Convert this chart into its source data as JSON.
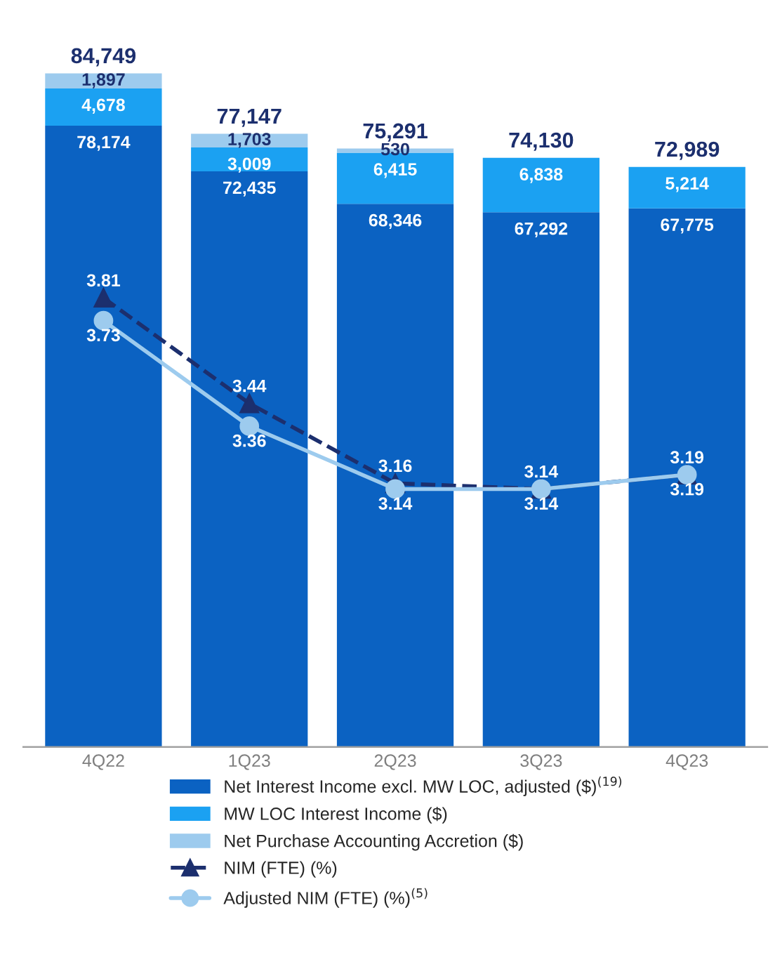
{
  "chart_data": {
    "type": "bar",
    "stacked": true,
    "categories": [
      "4Q22",
      "1Q23",
      "2Q23",
      "3Q23",
      "4Q23"
    ],
    "tick_labels": "x",
    "grid": false,
    "legend": "bottom",
    "series": [
      {
        "name": "Net Interest Income excl. MW LOC, adjusted ($)$^{(19)}$",
        "color": "#0b62c2",
        "values": [
          78174,
          72435,
          68346,
          67292,
          67775
        ],
        "value_labels": [
          "78,174",
          "72,435",
          "68,346",
          "67,292",
          "67,775"
        ]
      },
      {
        "name": "MW LOC Interest Income ($)",
        "color": "#1ba1f2",
        "values": [
          4678,
          3009,
          6415,
          6838,
          5214
        ],
        "value_labels": [
          "4,678",
          "3,009",
          "6,415",
          "6,838",
          "5,214"
        ]
      },
      {
        "name": "Net Purchase Accounting Accretion ($)",
        "color": "#9dcbee",
        "values": [
          1897,
          1703,
          530,
          null,
          null
        ],
        "value_labels": [
          "1,897",
          "1,703",
          "530",
          null,
          null
        ]
      },
      {
        "name": "NIM (FTE) (%)",
        "type": "line",
        "axis": "y2",
        "color": "#1c2f6e",
        "marker": "triangle",
        "line_style": "dashed",
        "values": [
          3.81,
          3.44,
          3.16,
          3.14,
          3.19
        ],
        "value_labels": [
          "3.81",
          "3.44",
          "3.16",
          "3.14",
          "3.19"
        ]
      },
      {
        "name": "Adjusted NIM (FTE) (%)$^{(5)}$",
        "type": "line",
        "axis": "y2",
        "color": "#9dcbee",
        "marker": "circle",
        "line_style": "solid",
        "values": [
          3.73,
          3.36,
          3.14,
          3.14,
          3.19
        ],
        "value_labels": [
          "3.73",
          "3.36",
          "3.14",
          "3.14",
          "3.19"
        ]
      }
    ],
    "totals": [
      "84,749",
      "77,147",
      "75,291",
      "74,130",
      "72,989"
    ]
  }
}
